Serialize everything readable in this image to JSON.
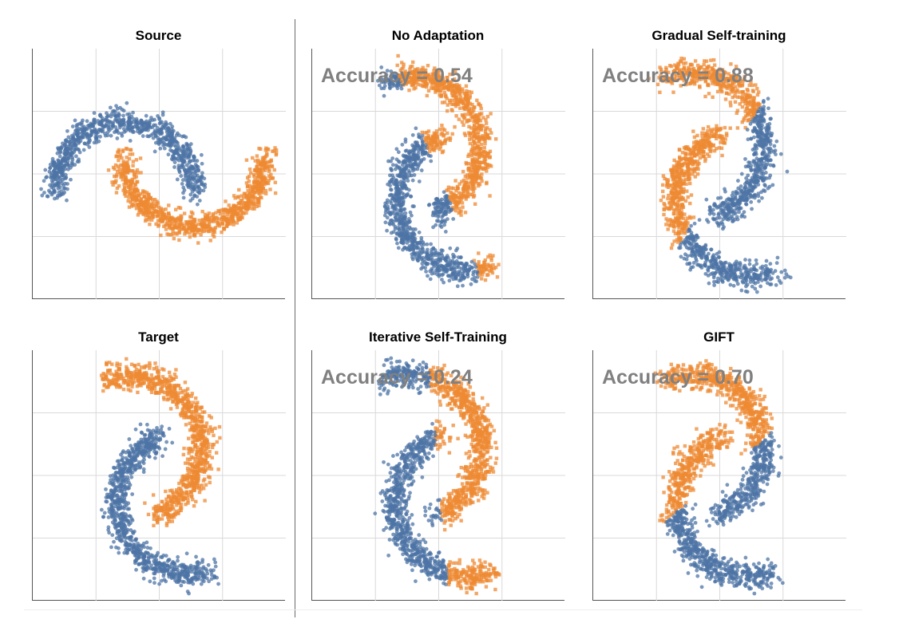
{
  "colors": {
    "class_0": "#4e74a6",
    "class_1": "#ed8a33",
    "grid": "#d9d9d9",
    "axis": "#555555",
    "accuracy_text": "#808080"
  },
  "panels": [
    {
      "title": "Source",
      "accuracy": ""
    },
    {
      "title": "No Adaptation",
      "accuracy": "Accuracy = 0.54"
    },
    {
      "title": "Gradual Self-training",
      "accuracy": "Accuracy = 0.88"
    },
    {
      "title": "Target",
      "accuracy": ""
    },
    {
      "title": "Iterative Self-Training",
      "accuracy": "Accuracy = 0.24"
    },
    {
      "title": "GIFT",
      "accuracy": "Accuracy = 0.70"
    }
  ],
  "chart_data": [
    {
      "type": "scatter",
      "title": "Source",
      "dataset": "two moons",
      "rotation_deg": 0,
      "series": [
        {
          "class": 0,
          "color": "#4e74a6",
          "marker": "circle"
        },
        {
          "class": 1,
          "color": "#ed8a33",
          "marker": "square"
        }
      ],
      "accuracy": null,
      "grid": true,
      "tick_labels": false
    },
    {
      "type": "scatter",
      "title": "No Adaptation",
      "dataset": "two moons",
      "rotation_deg": 110,
      "predicted_boundary_angle_deg": 22,
      "accuracy": 0.54,
      "grid": true,
      "tick_labels": false
    },
    {
      "type": "scatter",
      "title": "Gradual Self-training",
      "dataset": "two moons",
      "rotation_deg": 110,
      "predicted_boundary_angle_deg": 150,
      "accuracy": 0.88,
      "grid": true,
      "tick_labels": false
    },
    {
      "type": "scatter",
      "title": "Target",
      "dataset": "two moons",
      "rotation_deg": 110,
      "accuracy": null,
      "grid": true,
      "tick_labels": false
    },
    {
      "type": "scatter",
      "title": "Iterative Self-Training",
      "dataset": "two moons",
      "rotation_deg": 110,
      "predicted_boundary_angle_deg": 5,
      "accuracy": 0.24,
      "grid": true,
      "tick_labels": false
    },
    {
      "type": "scatter",
      "title": "GIFT",
      "dataset": "two moons",
      "rotation_deg": 110,
      "predicted_boundary_angle_deg": 130,
      "accuracy": 0.7,
      "grid": true,
      "tick_labels": false
    }
  ]
}
